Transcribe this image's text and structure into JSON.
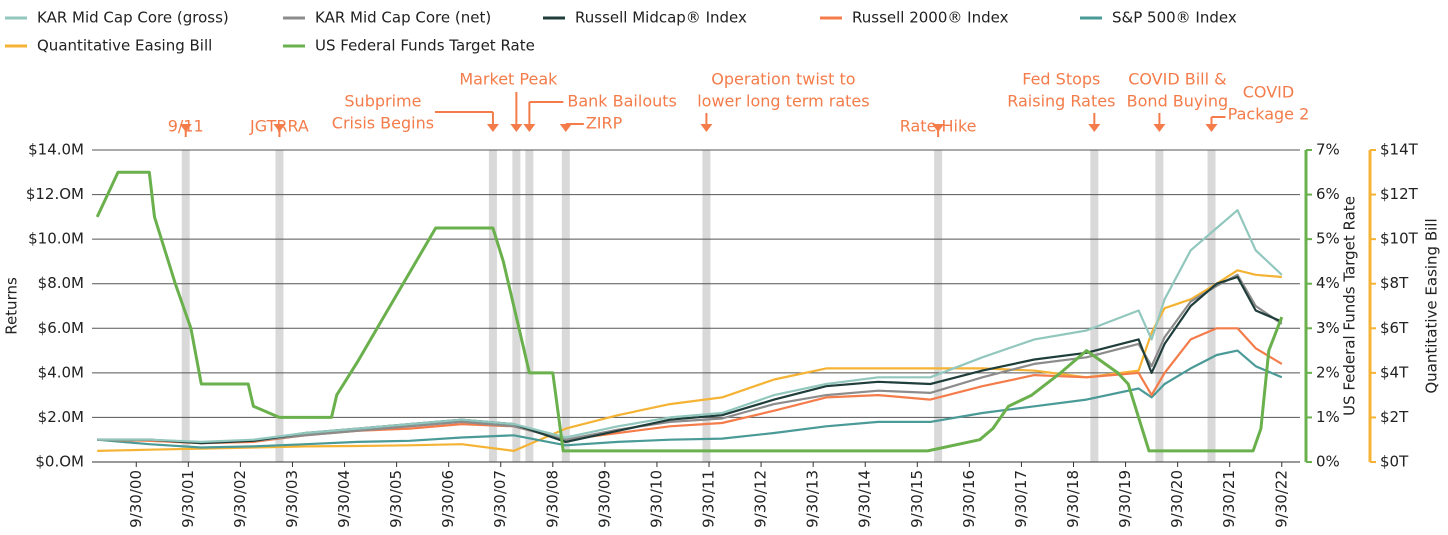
{
  "chart_data": {
    "type": "line",
    "x": [
      2000,
      2001,
      2002,
      2003,
      2004,
      2005,
      2006,
      2007,
      2008,
      2009,
      2010,
      2011,
      2012,
      2013,
      2014,
      2015,
      2016,
      2017,
      2018,
      2019,
      2020,
      2020.25,
      2020.5,
      2021,
      2021.5,
      2021.9,
      2022.25,
      2022.75
    ],
    "series": [
      {
        "name": "KAR Mid Cap Core (gross)",
        "color": "#92c7bd",
        "values": [
          1.0,
          1.0,
          0.9,
          1.0,
          1.3,
          1.5,
          1.7,
          1.9,
          1.7,
          1.1,
          1.6,
          2.0,
          2.2,
          3.0,
          3.5,
          3.8,
          3.8,
          4.7,
          5.5,
          5.9,
          6.8,
          5.5,
          7.3,
          9.5,
          10.5,
          11.3,
          9.5,
          8.4
        ]
      },
      {
        "name": "KAR Mid Cap Core (net)",
        "color": "#8c8c8c",
        "values": [
          1.0,
          1.0,
          0.88,
          0.95,
          1.2,
          1.4,
          1.6,
          1.8,
          1.6,
          1.0,
          1.45,
          1.8,
          1.95,
          2.6,
          3.0,
          3.2,
          3.1,
          3.8,
          4.4,
          4.7,
          5.3,
          4.3,
          5.6,
          7.2,
          7.9,
          8.4,
          7.0,
          6.2
        ]
      },
      {
        "name": "Russell Midcap® Index",
        "color": "#1f3d3a",
        "values": [
          1.0,
          1.0,
          0.85,
          0.95,
          1.3,
          1.5,
          1.7,
          1.9,
          1.7,
          0.9,
          1.4,
          1.9,
          2.1,
          2.8,
          3.4,
          3.6,
          3.5,
          4.1,
          4.6,
          4.9,
          5.5,
          4.0,
          5.3,
          7.0,
          8.0,
          8.3,
          6.8,
          6.3
        ]
      },
      {
        "name": "Russell 2000® Index",
        "color": "#f47c4a",
        "values": [
          1.0,
          0.95,
          0.85,
          0.9,
          1.2,
          1.4,
          1.5,
          1.7,
          1.6,
          1.0,
          1.3,
          1.6,
          1.75,
          2.3,
          2.9,
          3.0,
          2.8,
          3.4,
          3.9,
          3.8,
          4.0,
          3.0,
          4.0,
          5.5,
          6.0,
          6.0,
          5.1,
          4.4
        ]
      },
      {
        "name": "S&P 500® Index",
        "color": "#4a9a97",
        "values": [
          1.0,
          0.8,
          0.65,
          0.7,
          0.8,
          0.9,
          0.95,
          1.1,
          1.2,
          0.75,
          0.9,
          1.0,
          1.05,
          1.3,
          1.6,
          1.8,
          1.8,
          2.2,
          2.5,
          2.8,
          3.3,
          2.9,
          3.5,
          4.2,
          4.8,
          5.0,
          4.3,
          3.8
        ]
      },
      {
        "name": "Quantitative Easing Bill",
        "color": "#f5b335",
        "axis": "y3",
        "values": [
          0.5,
          0.55,
          0.6,
          0.65,
          0.7,
          0.72,
          0.75,
          0.8,
          0.5,
          1.5,
          2.1,
          2.6,
          2.9,
          3.7,
          4.2,
          4.2,
          4.2,
          4.2,
          4.1,
          3.8,
          4.1,
          5.8,
          6.9,
          7.3,
          8.0,
          8.6,
          8.4,
          8.3
        ]
      },
      {
        "name": "US Federal Funds Target Rate",
        "color": "#6ab04c",
        "axis": "y2",
        "x": [
          2000,
          2000.1,
          2000.2,
          2000.4,
          2001,
          2001.1,
          2001.5,
          2001.8,
          2002,
          2002.9,
          2003,
          2003.5,
          2004.5,
          2004.6,
          2005,
          2005.5,
          2006,
          2006.5,
          2007.6,
          2007.8,
          2008.1,
          2008.3,
          2008.75,
          2008.95,
          2015.95,
          2016.95,
          2017.2,
          2017.5,
          2017.95,
          2018.5,
          2019,
          2019.6,
          2019.8,
          2020.2,
          2022.2,
          2022.35,
          2022.5,
          2022.75
        ],
        "values": [
          5.5,
          5.75,
          6,
          6.5,
          6.5,
          5.5,
          4,
          3,
          1.75,
          1.75,
          1.25,
          1.0,
          1.0,
          1.5,
          2.25,
          3.25,
          4.25,
          5.25,
          5.25,
          4.5,
          3.0,
          2.0,
          2.0,
          0.25,
          0.25,
          0.5,
          0.75,
          1.25,
          1.5,
          2.0,
          2.5,
          2.0,
          1.75,
          0.25,
          0.25,
          0.75,
          2.5,
          3.25
        ]
      }
    ],
    "xlim": [
      1999.9,
      2023.1
    ],
    "xticks": [
      {
        "value": 2000.75,
        "label": "9/30/00"
      },
      {
        "value": 2001.75,
        "label": "9/30/01"
      },
      {
        "value": 2002.75,
        "label": "9/30/02"
      },
      {
        "value": 2003.75,
        "label": "9/30/03"
      },
      {
        "value": 2004.75,
        "label": "9/30/04"
      },
      {
        "value": 2005.75,
        "label": "9/30/05"
      },
      {
        "value": 2006.75,
        "label": "9/30/06"
      },
      {
        "value": 2007.75,
        "label": "9/30/07"
      },
      {
        "value": 2008.75,
        "label": "9/30/08"
      },
      {
        "value": 2009.75,
        "label": "9/30/09"
      },
      {
        "value": 2010.75,
        "label": "9/30/10"
      },
      {
        "value": 2011.75,
        "label": "9/30/11"
      },
      {
        "value": 2012.75,
        "label": "9/30/12"
      },
      {
        "value": 2013.75,
        "label": "9/30/13"
      },
      {
        "value": 2014.75,
        "label": "9/30/14"
      },
      {
        "value": 2015.75,
        "label": "9/30/15"
      },
      {
        "value": 2016.75,
        "label": "9/30/16"
      },
      {
        "value": 2017.75,
        "label": "9/30/17"
      },
      {
        "value": 2018.75,
        "label": "9/30/18"
      },
      {
        "value": 2019.75,
        "label": "9/30/19"
      },
      {
        "value": 2020.75,
        "label": "9/30/20"
      },
      {
        "value": 2021.75,
        "label": "9/30/21"
      },
      {
        "value": 2022.75,
        "label": "9/30/22"
      }
    ],
    "ylabel": "Returns",
    "ylim": [
      0,
      14
    ],
    "yticks": [
      {
        "value": 0,
        "label": "$0.OM"
      },
      {
        "value": 2,
        "label": "$2.0M"
      },
      {
        "value": 4,
        "label": "$4.0M"
      },
      {
        "value": 6,
        "label": "$6.0M"
      },
      {
        "value": 8,
        "label": "$8.0M"
      },
      {
        "value": 10,
        "label": "$10.0M"
      },
      {
        "value": 12,
        "label": "$12.OM"
      },
      {
        "value": 14,
        "label": "$14.0M"
      }
    ],
    "y2label": "US Federal Funds Target Rate",
    "y2lim": [
      0,
      7
    ],
    "y2ticks": [
      {
        "value": 0,
        "label": "0%"
      },
      {
        "value": 1,
        "label": "1%"
      },
      {
        "value": 2,
        "label": "2%"
      },
      {
        "value": 3,
        "label": "3%"
      },
      {
        "value": 4,
        "label": "4%"
      },
      {
        "value": 5,
        "label": "5%"
      },
      {
        "value": 6,
        "label": "6%"
      },
      {
        "value": 7,
        "label": "7%"
      }
    ],
    "y3label": "Quantitative Easing Bill",
    "y3lim": [
      0,
      14
    ],
    "y3ticks": [
      {
        "value": 0,
        "label": "$0T"
      },
      {
        "value": 2,
        "label": "$2T"
      },
      {
        "value": 4,
        "label": "$4T"
      },
      {
        "value": 6,
        "label": "$6T"
      },
      {
        "value": 8,
        "label": "$8T"
      },
      {
        "value": 10,
        "label": "$10T"
      },
      {
        "value": 12,
        "label": "$12T"
      },
      {
        "value": 14,
        "label": "$14T"
      }
    ],
    "grid": true,
    "annotations": [
      {
        "lines": [
          "9/11"
        ],
        "x": 2001.7
      },
      {
        "lines": [
          "JGTRRA"
        ],
        "x": 2003.5
      },
      {
        "lines": [
          "Subprime",
          "Crisis Begins"
        ],
        "x": 2007.6
      },
      {
        "lines": [
          "Market Peak"
        ],
        "x": 2008.05
      },
      {
        "lines": [
          "Bank Bailouts"
        ],
        "x": 2008.3
      },
      {
        "lines": [
          "ZIRP"
        ],
        "x": 2009.0
      },
      {
        "lines": [
          "Operation twist to",
          "lower long term rates"
        ],
        "x": 2011.7
      },
      {
        "lines": [
          "Rate Hike"
        ],
        "x": 2016.15
      },
      {
        "lines": [
          "Fed Stops",
          "Raising Rates"
        ],
        "x": 2019.15
      },
      {
        "lines": [
          "COVID Bill &",
          "Bond Buying"
        ],
        "x": 2020.4
      },
      {
        "lines": [
          "COVID",
          "Package 2"
        ],
        "x": 2021.4
      }
    ]
  }
}
